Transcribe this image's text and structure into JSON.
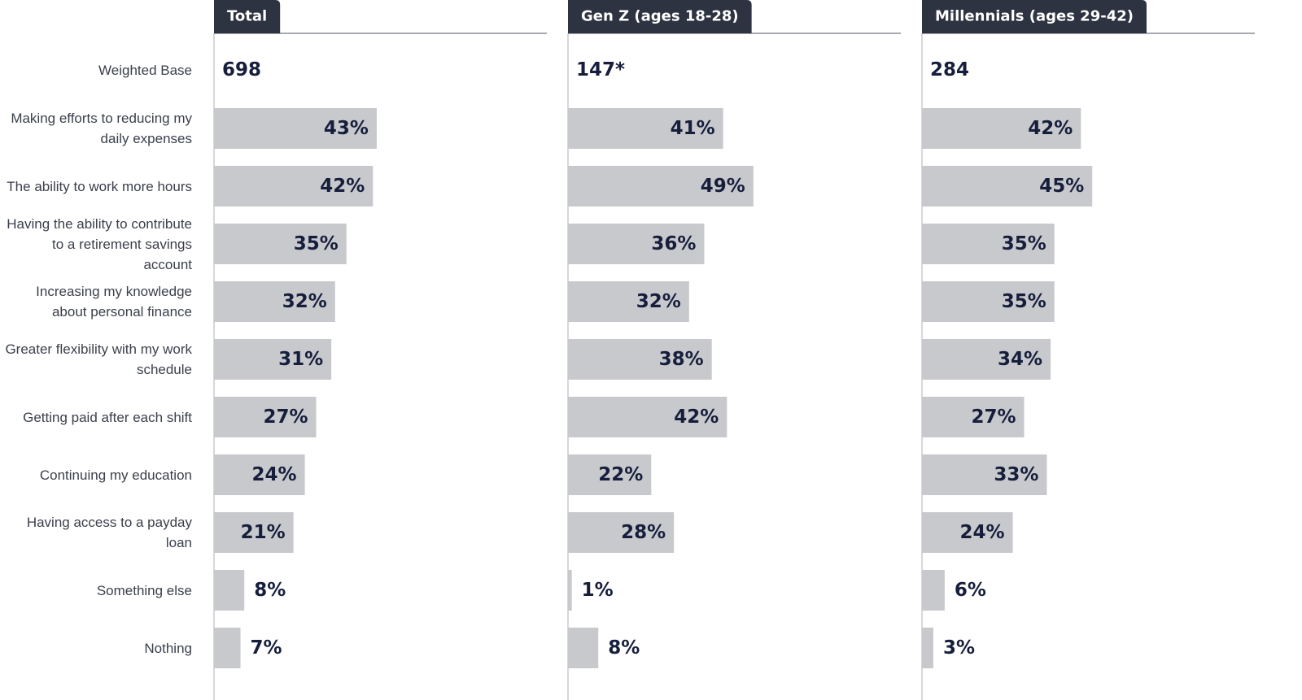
{
  "chart_data": {
    "type": "bar",
    "base_label": "Weighted Base",
    "categories": [
      "Making efforts to reducing my daily expenses",
      "The ability to work more hours",
      "Having the ability to contribute to a retirement savings account",
      "Increasing my knowledge about personal finance",
      "Greater flexibility with my work schedule",
      "Getting paid after each shift",
      "Continuing my education",
      "Having access to a payday loan",
      "Something else",
      "Nothing"
    ],
    "series": [
      {
        "name": "Total",
        "color": "#c8c9cc",
        "base": 698,
        "values": [
          43,
          42,
          35,
          32,
          31,
          27,
          24,
          21,
          8,
          7
        ],
        "value_labels": [
          "43%",
          "42%",
          "35%",
          "32%",
          "31%",
          "27%",
          "24%",
          "21%",
          "8%",
          "7%"
        ]
      },
      {
        "name": "Gen Z (ages 18-28)",
        "color": "#c8c9cc",
        "base": {
          "value": 147,
          "label": "147*"
        },
        "values": [
          41,
          49,
          36,
          32,
          38,
          42,
          22,
          28,
          1,
          8
        ],
        "value_labels": [
          "41%",
          "49%",
          "36%",
          "32%",
          "38%",
          "42%",
          "22%",
          "28%",
          "1%",
          "8%"
        ]
      },
      {
        "name": "Millennials (ages 29-42)",
        "color": "#c8c9cc",
        "base": 284,
        "values": [
          42,
          45,
          35,
          35,
          34,
          27,
          33,
          24,
          6,
          3
        ],
        "value_labels": [
          "42%",
          "45%",
          "35%",
          "35%",
          "34%",
          "27%",
          "33%",
          "24%",
          "6%",
          "3%"
        ]
      }
    ]
  }
}
